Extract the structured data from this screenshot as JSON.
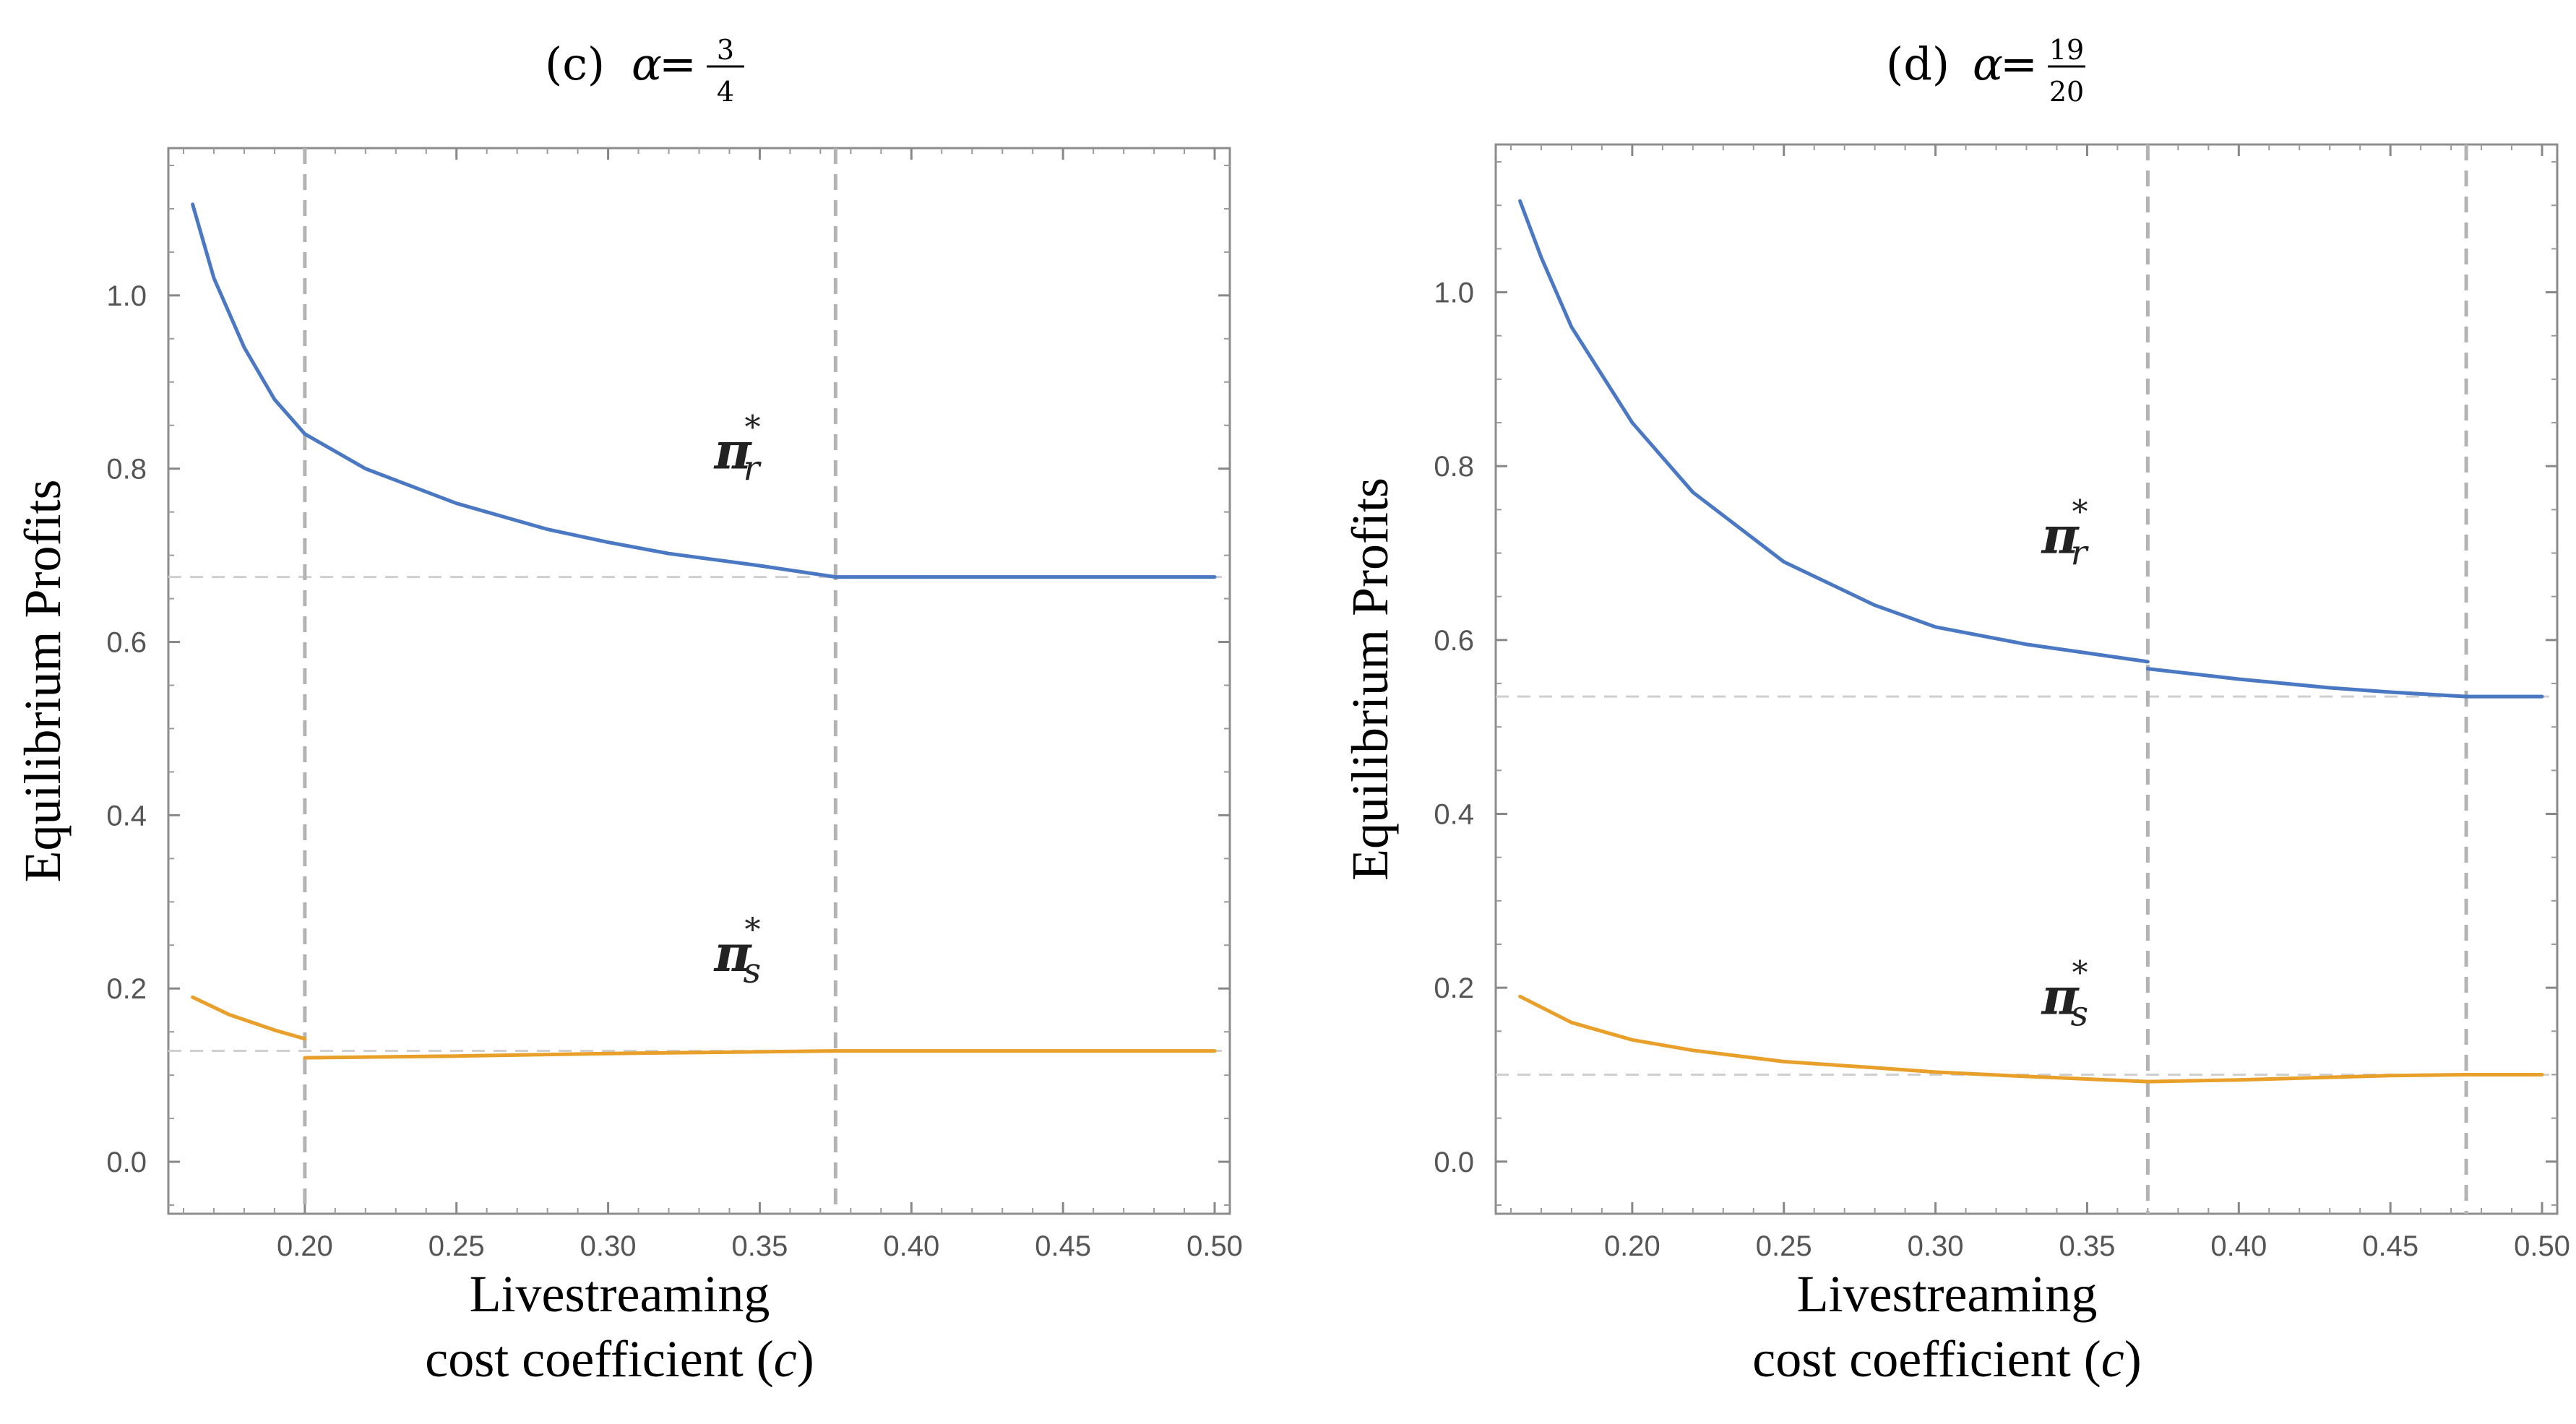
{
  "chart_data": [
    {
      "type": "line",
      "panel": "c",
      "title": {
        "prefix": "(c) ",
        "symbol": "α",
        "equals": " = ",
        "numerator": "3",
        "denominator": "4"
      },
      "xlabel_line1": "Livestreaming",
      "xlabel_line2_prefix": "cost coefficient (",
      "xlabel_var": "c",
      "xlabel_line2_suffix": ")",
      "ylabel": "Equilibrium Profits",
      "xlim": [
        0.155,
        0.505
      ],
      "ylim": [
        -0.06,
        1.17
      ],
      "xticks": [
        0.2,
        0.25,
        0.3,
        0.35,
        0.4,
        0.45,
        0.5
      ],
      "xtick_labels": [
        "0.20",
        "0.25",
        "0.30",
        "0.35",
        "0.40",
        "0.45",
        "0.50"
      ],
      "yticks": [
        0.0,
        0.2,
        0.4,
        0.6,
        0.8,
        1.0
      ],
      "ytick_labels": [
        "0.0",
        "0.2",
        "0.4",
        "0.6",
        "0.8",
        "1.0"
      ],
      "vlines": [
        0.2,
        0.375
      ],
      "hlines": [
        0.675,
        0.128
      ],
      "series": [
        {
          "name": "π_r*",
          "color": "#4a78c2",
          "segments": [
            {
              "x": [
                0.163,
                0.17,
                0.18,
                0.19,
                0.2
              ],
              "y": [
                1.105,
                1.02,
                0.94,
                0.88,
                0.84
              ]
            },
            {
              "x": [
                0.2,
                0.22,
                0.25,
                0.28,
                0.3,
                0.32,
                0.35,
                0.375
              ],
              "y": [
                0.84,
                0.8,
                0.76,
                0.73,
                0.715,
                0.702,
                0.688,
                0.675
              ]
            },
            {
              "x": [
                0.375,
                0.5
              ],
              "y": [
                0.675,
                0.675
              ]
            }
          ]
        },
        {
          "name": "π_s*",
          "color": "#e9a02a",
          "segments": [
            {
              "x": [
                0.163,
                0.175,
                0.19,
                0.2
              ],
              "y": [
                0.19,
                0.17,
                0.152,
                0.142
              ]
            },
            {
              "x": [
                0.2,
                0.25,
                0.3,
                0.375
              ],
              "y": [
                0.12,
                0.122,
                0.125,
                0.128
              ]
            },
            {
              "x": [
                0.375,
                0.5
              ],
              "y": [
                0.128,
                0.128
              ]
            }
          ]
        }
      ],
      "annotations": [
        {
          "symbol": "π",
          "sub": "r",
          "sup": "*",
          "x": 0.335,
          "y": 0.8
        },
        {
          "symbol": "π",
          "sub": "s",
          "sup": "*",
          "x": 0.335,
          "y": 0.22
        }
      ]
    },
    {
      "type": "line",
      "panel": "d",
      "title": {
        "prefix": "(d) ",
        "symbol": "α",
        "equals": " = ",
        "numerator": "19",
        "denominator": "20"
      },
      "xlabel_line1": "Livestreaming",
      "xlabel_line2_prefix": "cost coefficient (",
      "xlabel_var": "c",
      "xlabel_line2_suffix": ")",
      "ylabel": "Equilibrium Profits",
      "xlim": [
        0.155,
        0.505
      ],
      "ylim": [
        -0.06,
        1.17
      ],
      "xticks": [
        0.2,
        0.25,
        0.3,
        0.35,
        0.4,
        0.45,
        0.5
      ],
      "xtick_labels": [
        "0.20",
        "0.25",
        "0.30",
        "0.35",
        "0.40",
        "0.45",
        "0.50"
      ],
      "yticks": [
        0.0,
        0.2,
        0.4,
        0.6,
        0.8,
        1.0
      ],
      "ytick_labels": [
        "0.0",
        "0.2",
        "0.4",
        "0.6",
        "0.8",
        "1.0"
      ],
      "vlines": [
        0.37,
        0.475
      ],
      "hlines": [
        0.535,
        0.1
      ],
      "series": [
        {
          "name": "π_r*",
          "color": "#4a78c2",
          "segments": [
            {
              "x": [
                0.163,
                0.17,
                0.18,
                0.2,
                0.22,
                0.25,
                0.28,
                0.3,
                0.33,
                0.35,
                0.37
              ],
              "y": [
                1.105,
                1.04,
                0.96,
                0.85,
                0.77,
                0.69,
                0.64,
                0.615,
                0.595,
                0.585,
                0.575
              ]
            },
            {
              "x": [
                0.37,
                0.4,
                0.43,
                0.45,
                0.475
              ],
              "y": [
                0.567,
                0.555,
                0.545,
                0.54,
                0.535
              ]
            },
            {
              "x": [
                0.475,
                0.5
              ],
              "y": [
                0.535,
                0.535
              ]
            }
          ]
        },
        {
          "name": "π_s*",
          "color": "#e9a02a",
          "segments": [
            {
              "x": [
                0.163,
                0.18,
                0.2,
                0.22,
                0.25,
                0.28,
                0.3,
                0.33,
                0.35,
                0.37
              ],
              "y": [
                0.19,
                0.16,
                0.14,
                0.128,
                0.115,
                0.108,
                0.103,
                0.098,
                0.095,
                0.092
              ]
            },
            {
              "x": [
                0.37,
                0.4,
                0.43,
                0.45,
                0.475
              ],
              "y": [
                0.092,
                0.094,
                0.097,
                0.099,
                0.1
              ]
            },
            {
              "x": [
                0.475,
                0.5
              ],
              "y": [
                0.1,
                0.1
              ]
            }
          ]
        }
      ],
      "annotations": [
        {
          "symbol": "π",
          "sub": "r",
          "sup": "*",
          "x": 0.335,
          "y": 0.7
        },
        {
          "symbol": "π",
          "sub": "s",
          "sup": "*",
          "x": 0.335,
          "y": 0.17
        }
      ]
    }
  ]
}
